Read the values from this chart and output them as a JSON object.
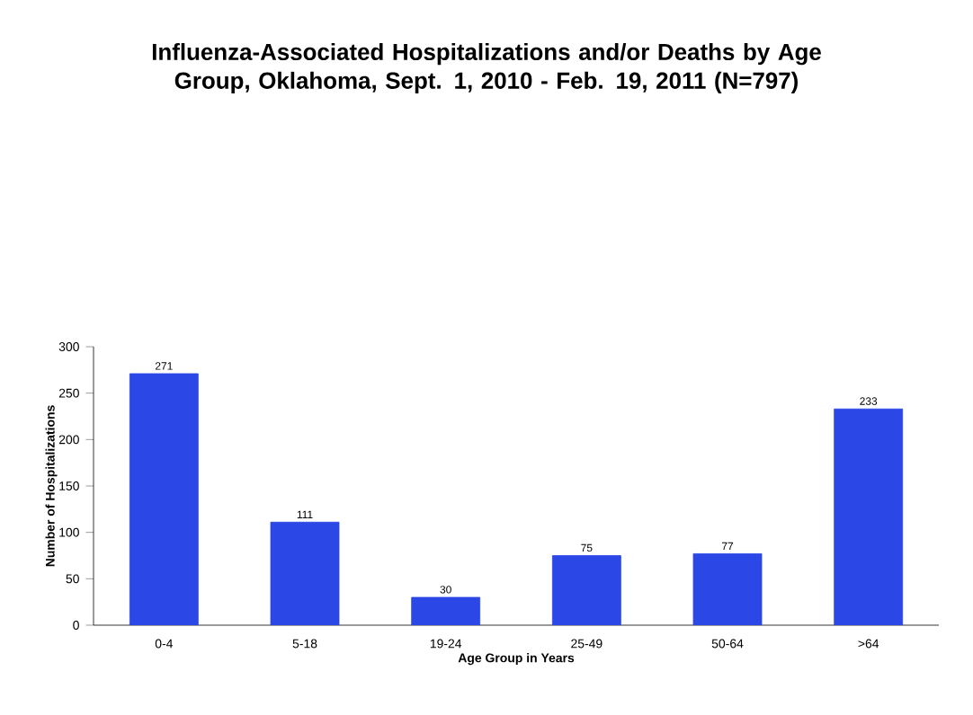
{
  "chart_data": {
    "type": "bar",
    "title": "Influenza-Associated Hospitalizations and/or Deaths by Age Group, Oklahoma, Sept. 1, 2010 - Feb. 19, 2011 (N=797)",
    "xlabel": "Age Group in Years",
    "ylabel": "Number of Hospitalizations",
    "categories": [
      "0-4",
      "5-18",
      "19-24",
      "25-49",
      "50-64",
      ">64"
    ],
    "values": [
      271,
      111,
      30,
      75,
      77,
      233
    ],
    "color": "#2b47e6",
    "ylim": [
      0,
      300
    ],
    "yticks": [
      0,
      50,
      100,
      150,
      200,
      250,
      300
    ],
    "data_labels": true
  }
}
